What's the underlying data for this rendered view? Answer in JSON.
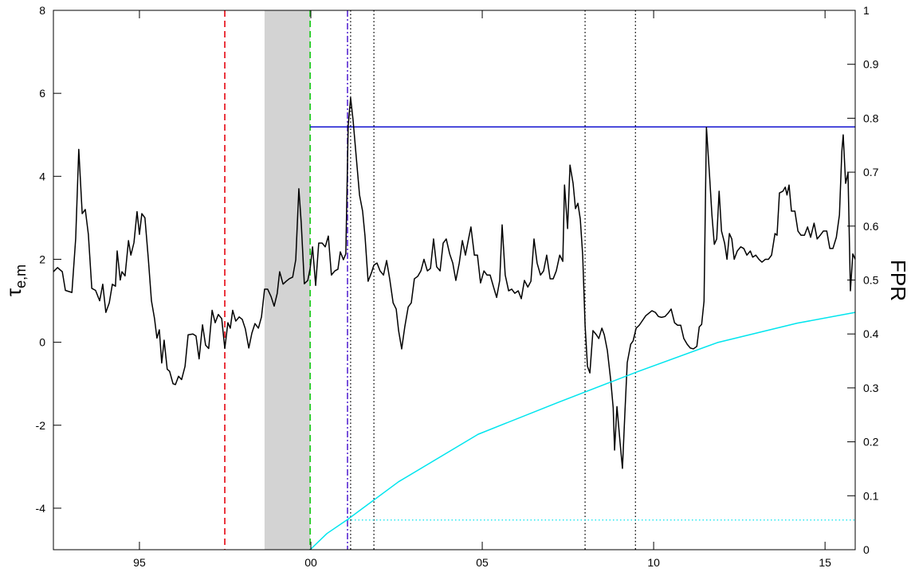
{
  "chart_data": {
    "type": "line",
    "ylabel": {
      "symbol": "τ",
      "subscript": "e,m"
    },
    "y2label": "FPR",
    "xlim": [
      1992.49,
      2015.88
    ],
    "xticks": [
      {
        "value": 1995,
        "label": "95"
      },
      {
        "value": 2000,
        "label": "00"
      },
      {
        "value": 2005,
        "label": "05"
      },
      {
        "value": 2010,
        "label": "10"
      },
      {
        "value": 2015,
        "label": "15"
      }
    ],
    "ylim": [
      -5,
      8
    ],
    "yticks": [
      -4,
      -2,
      0,
      2,
      4,
      6,
      8
    ],
    "y2lim": [
      0,
      1
    ],
    "y2ticks": [
      0,
      0.1,
      0.2,
      0.3,
      0.4,
      0.5,
      0.6,
      0.7,
      0.8,
      0.9,
      1
    ],
    "shade": {
      "x": [
        1998.65,
        1999.98
      ],
      "color": "#d3d3d3"
    },
    "vlines": [
      {
        "x": 1997.49,
        "color": "#e8202a",
        "style": "dashed"
      },
      {
        "x": 1999.98,
        "color": "#22cc22",
        "style": "dashed"
      },
      {
        "x": 2001.07,
        "color": "#6a3fd8",
        "style": "dashdot"
      },
      {
        "x": 2001.16,
        "color": "#000000",
        "style": "dotted"
      },
      {
        "x": 2001.84,
        "color": "#000000",
        "style": "dotted"
      },
      {
        "x": 2008.0,
        "color": "#000000",
        "style": "dotted"
      },
      {
        "x": 2009.47,
        "color": "#000000",
        "style": "dotted"
      }
    ],
    "hlines": [
      {
        "value": 5.19,
        "x_start": 1999.98,
        "color": "#0000cc",
        "style": "solid"
      },
      {
        "value": 0.055,
        "x_start": 2001.07,
        "color": "#00e5ee",
        "style": "dotted",
        "axis": "y2"
      }
    ],
    "series": [
      {
        "color": "#000000",
        "x": [
          1992.49,
          1992.61,
          1992.75,
          1992.84,
          1993.03,
          1993.14,
          1993.23,
          1993.33,
          1993.42,
          1993.51,
          1993.61,
          1993.72,
          1993.84,
          1993.93,
          1994.02,
          1994.12,
          1994.21,
          1994.3,
          1994.35,
          1994.44,
          1994.49,
          1994.58,
          1994.68,
          1994.75,
          1994.84,
          1994.93,
          1995.0,
          1995.07,
          1995.16,
          1995.26,
          1995.35,
          1995.44,
          1995.51,
          1995.58,
          1995.65,
          1995.72,
          1995.81,
          1995.88,
          1995.98,
          1996.05,
          1996.14,
          1996.23,
          1996.33,
          1996.42,
          1996.56,
          1996.65,
          1996.74,
          1996.84,
          1996.93,
          1997.02,
          1997.12,
          1997.21,
          1997.3,
          1997.4,
          1997.49,
          1997.58,
          1997.65,
          1997.72,
          1997.81,
          1997.91,
          1998.0,
          1998.09,
          1998.19,
          1998.28,
          1998.37,
          1998.47,
          1998.56,
          1998.65,
          1998.74,
          1998.84,
          1998.93,
          1999.02,
          1999.09,
          1999.19,
          1999.28,
          1999.37,
          1999.47,
          1999.56,
          1999.65,
          1999.72,
          1999.81,
          1999.91,
          1999.98,
          2000.05,
          2000.14,
          2000.23,
          2000.33,
          2000.42,
          2000.51,
          2000.6,
          2000.7,
          2000.79,
          2000.86,
          2000.95,
          2001.02,
          2001.09,
          2001.16,
          2001.23,
          2001.33,
          2001.42,
          2001.51,
          2001.58,
          2001.67,
          2001.77,
          2001.84,
          2001.93,
          2002.02,
          2002.12,
          2002.21,
          2002.3,
          2002.4,
          2002.49,
          2002.56,
          2002.65,
          2002.74,
          2002.84,
          2002.93,
          2003.02,
          2003.12,
          2003.21,
          2003.3,
          2003.4,
          2003.49,
          2003.58,
          2003.67,
          2003.77,
          2003.86,
          2003.95,
          2004.05,
          2004.14,
          2004.23,
          2004.33,
          2004.42,
          2004.51,
          2004.6,
          2004.67,
          2004.77,
          2004.86,
          2004.95,
          2005.05,
          2005.14,
          2005.23,
          2005.33,
          2005.42,
          2005.51,
          2005.58,
          2005.67,
          2005.77,
          2005.86,
          2005.95,
          2006.05,
          2006.14,
          2006.23,
          2006.33,
          2006.42,
          2006.51,
          2006.6,
          2006.7,
          2006.79,
          2006.88,
          2006.98,
          2007.07,
          2007.16,
          2007.26,
          2007.35,
          2007.4,
          2007.49,
          2007.56,
          2007.65,
          2007.72,
          2007.79,
          2007.86,
          2007.93,
          2008.0,
          2008.07,
          2008.14,
          2008.23,
          2008.33,
          2008.4,
          2008.49,
          2008.56,
          2008.65,
          2008.75,
          2008.82,
          2008.86,
          2008.93,
          2009.02,
          2009.09,
          2009.16,
          2009.23,
          2009.33,
          2009.4,
          2009.49,
          2009.58,
          2009.68,
          2009.77,
          2009.86,
          2009.95,
          2010.05,
          2010.14,
          2010.23,
          2010.33,
          2010.42,
          2010.51,
          2010.61,
          2010.7,
          2010.79,
          2010.88,
          2010.98,
          2011.07,
          2011.16,
          2011.26,
          2011.33,
          2011.4,
          2011.47,
          2011.54,
          2011.63,
          2011.7,
          2011.77,
          2011.84,
          2011.91,
          2011.98,
          2012.07,
          2012.14,
          2012.21,
          2012.28,
          2012.35,
          2012.44,
          2012.54,
          2012.63,
          2012.72,
          2012.82,
          2012.89,
          2012.98,
          2013.07,
          2013.16,
          2013.26,
          2013.35,
          2013.44,
          2013.54,
          2013.6,
          2013.67,
          2013.77,
          2013.84,
          2013.89,
          2013.95,
          2014.02,
          2014.12,
          2014.21,
          2014.3,
          2014.4,
          2014.49,
          2014.58,
          2014.68,
          2014.77,
          2014.86,
          2014.95,
          2015.05,
          2015.14,
          2015.23,
          2015.33,
          2015.42,
          2015.49,
          2015.53,
          2015.6,
          2015.67,
          2015.74,
          2015.81,
          2015.88
        ],
        "values": [
          1.7,
          1.8,
          1.7,
          1.25,
          1.2,
          2.5,
          4.65,
          3.1,
          3.2,
          2.6,
          1.3,
          1.25,
          1.0,
          1.4,
          0.72,
          0.95,
          1.4,
          1.35,
          2.2,
          1.5,
          1.7,
          1.6,
          2.45,
          2.1,
          2.4,
          3.15,
          2.6,
          3.1,
          3.0,
          2.0,
          1.0,
          0.57,
          0.1,
          0.3,
          -0.5,
          0.05,
          -0.65,
          -0.7,
          -1.0,
          -1.02,
          -0.82,
          -0.9,
          -0.58,
          0.18,
          0.2,
          0.15,
          -0.4,
          0.42,
          -0.07,
          -0.15,
          0.77,
          0.47,
          0.67,
          0.57,
          -0.15,
          0.47,
          0.34,
          0.77,
          0.51,
          0.61,
          0.55,
          0.32,
          -0.14,
          0.22,
          0.45,
          0.34,
          0.61,
          1.28,
          1.28,
          1.1,
          0.87,
          1.18,
          1.7,
          1.4,
          1.47,
          1.53,
          1.57,
          1.99,
          3.7,
          2.87,
          1.41,
          1.49,
          1.78,
          2.3,
          1.37,
          2.39,
          2.39,
          2.3,
          2.56,
          1.62,
          1.72,
          1.76,
          2.18,
          1.99,
          2.13,
          5.23,
          5.89,
          5.37,
          4.41,
          3.55,
          3.16,
          2.56,
          1.47,
          1.68,
          1.86,
          1.91,
          1.72,
          1.62,
          1.97,
          1.53,
          0.95,
          0.8,
          0.28,
          -0.16,
          0.37,
          0.85,
          0.95,
          1.53,
          1.59,
          1.72,
          2.0,
          1.72,
          1.78,
          2.49,
          1.82,
          1.72,
          2.39,
          2.49,
          2.13,
          1.91,
          1.49,
          1.91,
          2.45,
          2.1,
          2.49,
          2.78,
          2.1,
          2.1,
          1.43,
          1.72,
          1.62,
          1.62,
          1.33,
          1.08,
          1.49,
          2.83,
          1.62,
          1.24,
          1.28,
          1.18,
          1.24,
          1.05,
          1.49,
          1.33,
          1.47,
          2.49,
          1.91,
          1.62,
          1.72,
          2.1,
          1.53,
          1.53,
          1.72,
          2.1,
          1.95,
          3.79,
          2.74,
          4.27,
          3.83,
          3.22,
          3.35,
          2.97,
          2.1,
          0.41,
          -0.58,
          -0.74,
          0.28,
          0.18,
          0.09,
          0.34,
          0.18,
          -0.2,
          -0.93,
          -1.58,
          -2.6,
          -1.55,
          -2.41,
          -3.04,
          -1.73,
          -0.49,
          -0.05,
          0.03,
          0.34,
          0.41,
          0.53,
          0.64,
          0.7,
          0.76,
          0.72,
          0.62,
          0.6,
          0.62,
          0.7,
          0.8,
          0.47,
          0.41,
          0.41,
          0.09,
          -0.05,
          -0.14,
          -0.16,
          -0.1,
          0.37,
          0.43,
          0.99,
          5.18,
          4.03,
          3.07,
          2.36,
          2.49,
          3.64,
          2.68,
          2.39,
          2.0,
          2.62,
          2.49,
          2.0,
          2.2,
          2.3,
          2.26,
          2.1,
          2.2,
          2.05,
          2.1,
          2.0,
          1.93,
          2.0,
          2.0,
          2.1,
          2.62,
          2.58,
          3.6,
          3.64,
          3.74,
          3.55,
          3.79,
          3.16,
          3.16,
          2.68,
          2.58,
          2.58,
          2.78,
          2.53,
          2.87,
          2.49,
          2.58,
          2.68,
          2.68,
          2.26,
          2.26,
          2.53,
          3.07,
          4.6,
          5.0,
          3.83,
          4.08,
          1.24,
          2.13,
          2.0
        ]
      },
      {
        "color": "#00e5ee",
        "axis": "y2",
        "x": [
          1999.98,
          2000.47,
          2001.07,
          2002.56,
          2004.88,
          2007.21,
          2009.53,
          2011.86,
          2014.19,
          2015.88
        ],
        "values": [
          0.0,
          0.03,
          0.056,
          0.126,
          0.214,
          0.273,
          0.33,
          0.384,
          0.42,
          0.44
        ]
      }
    ]
  }
}
